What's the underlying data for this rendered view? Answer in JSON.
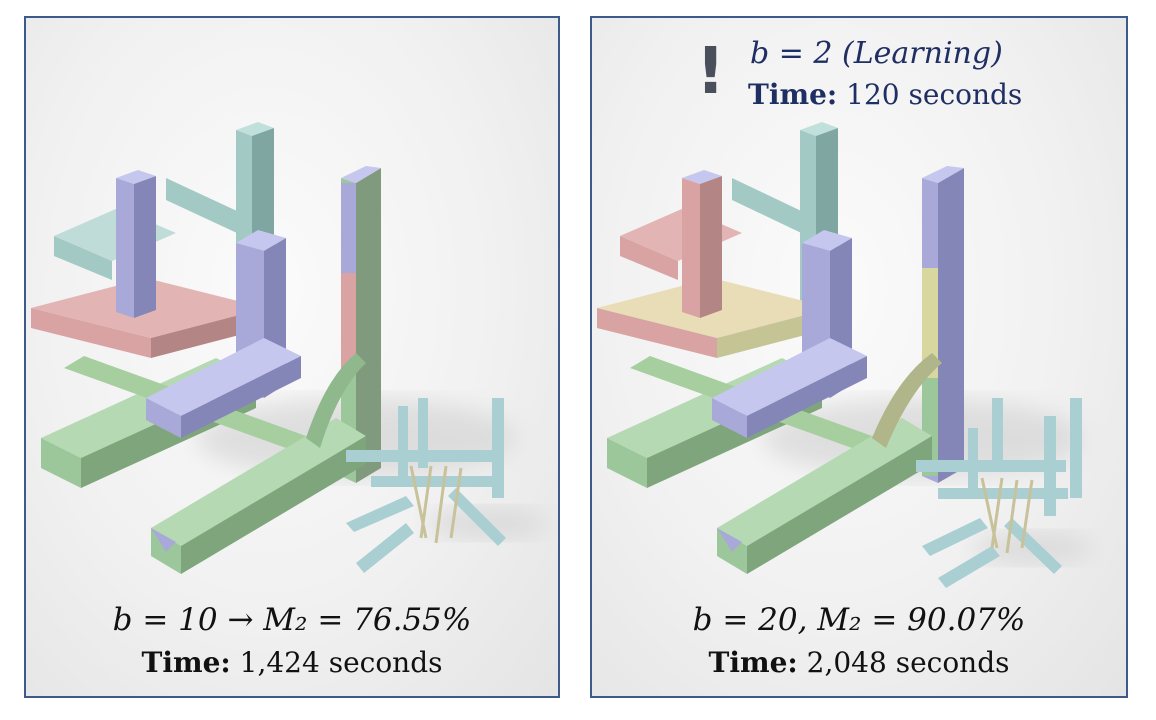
{
  "left_panel": {
    "equation": "b = 10 → M₂ = 76.55%",
    "time_label": "Time:",
    "time_value": "1,424 seconds"
  },
  "right_panel": {
    "header_mark": "!",
    "header_equation": "b = 2 (Learning)",
    "header_time_label": "Time:",
    "header_time_value": "120 seconds",
    "equation": "b = 20, M₂ = 90.07%",
    "time_label": "Time:",
    "time_value": "2,048 seconds"
  },
  "colors": {
    "border": "#3d5a8a",
    "header_text": "#1f2f63",
    "beam_blue": "#a8a9d8",
    "beam_teal": "#a3c9c4",
    "beam_pink": "#d9a3a3",
    "beam_green": "#9cc79a",
    "beam_yellow": "#d8d7a0",
    "small_model": "#a9cfd3"
  }
}
